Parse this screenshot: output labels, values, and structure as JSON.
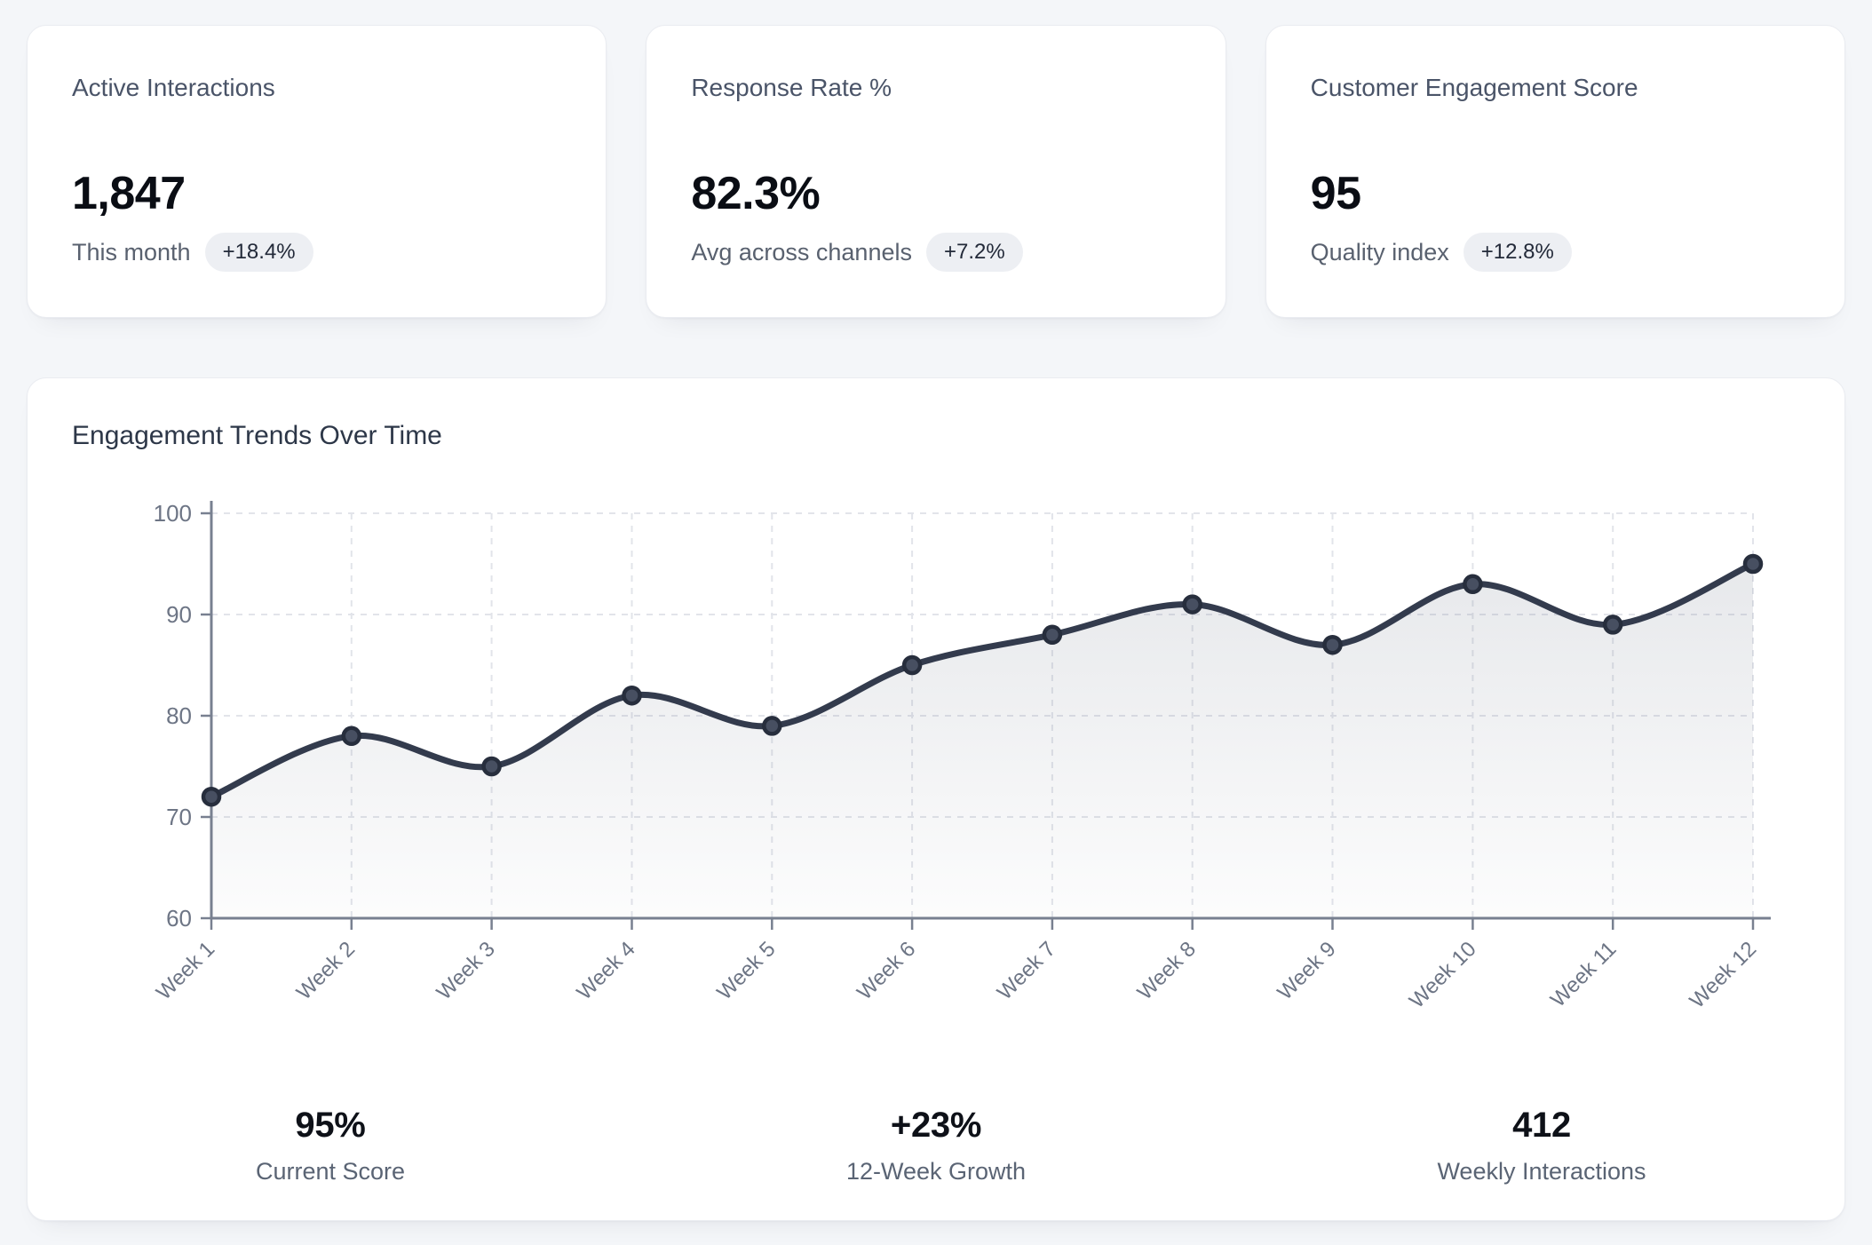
{
  "page": {
    "background": "#f4f6f9"
  },
  "kpi_cards": [
    {
      "title": "Active Interactions",
      "value": "1,847",
      "sublabel": "This month",
      "badge": "+18.4%"
    },
    {
      "title": "Response Rate %",
      "value": "82.3%",
      "sublabel": "Avg across channels",
      "badge": "+7.2%"
    },
    {
      "title": "Customer Engagement Score",
      "value": "95",
      "sublabel": "Quality index",
      "badge": "+12.8%"
    }
  ],
  "chart_card": {
    "title": "Engagement Trends Over Time",
    "stats": [
      {
        "value": "95%",
        "label": "Current Score"
      },
      {
        "value": "+23%",
        "label": "12-Week Growth"
      },
      {
        "value": "412",
        "label": "Weekly Interactions"
      }
    ]
  },
  "chart_data": {
    "type": "line",
    "title": "Engagement Trends Over Time",
    "x": [
      "Week 1",
      "Week 2",
      "Week 3",
      "Week 4",
      "Week 5",
      "Week 6",
      "Week 7",
      "Week 8",
      "Week 9",
      "Week 10",
      "Week 11",
      "Week 12"
    ],
    "values": [
      72,
      78,
      75,
      82,
      79,
      85,
      88,
      91,
      87,
      93,
      89,
      95
    ],
    "ylim": [
      60,
      100
    ],
    "yticks": [
      60,
      70,
      80,
      90,
      100
    ],
    "grid": true,
    "grid_dashed": true,
    "legend": false,
    "smooth": true,
    "area_fill": true,
    "colors": {
      "line": "#333b4d",
      "point_fill": "#474f61",
      "point_border": "#272e3d",
      "grid": "#e2e4ea",
      "axis": "#788090",
      "tick_label": "#6d7585",
      "area_top": "rgba(104,114,132,0.18)",
      "area_bottom": "rgba(104,114,132,0.02)"
    }
  }
}
